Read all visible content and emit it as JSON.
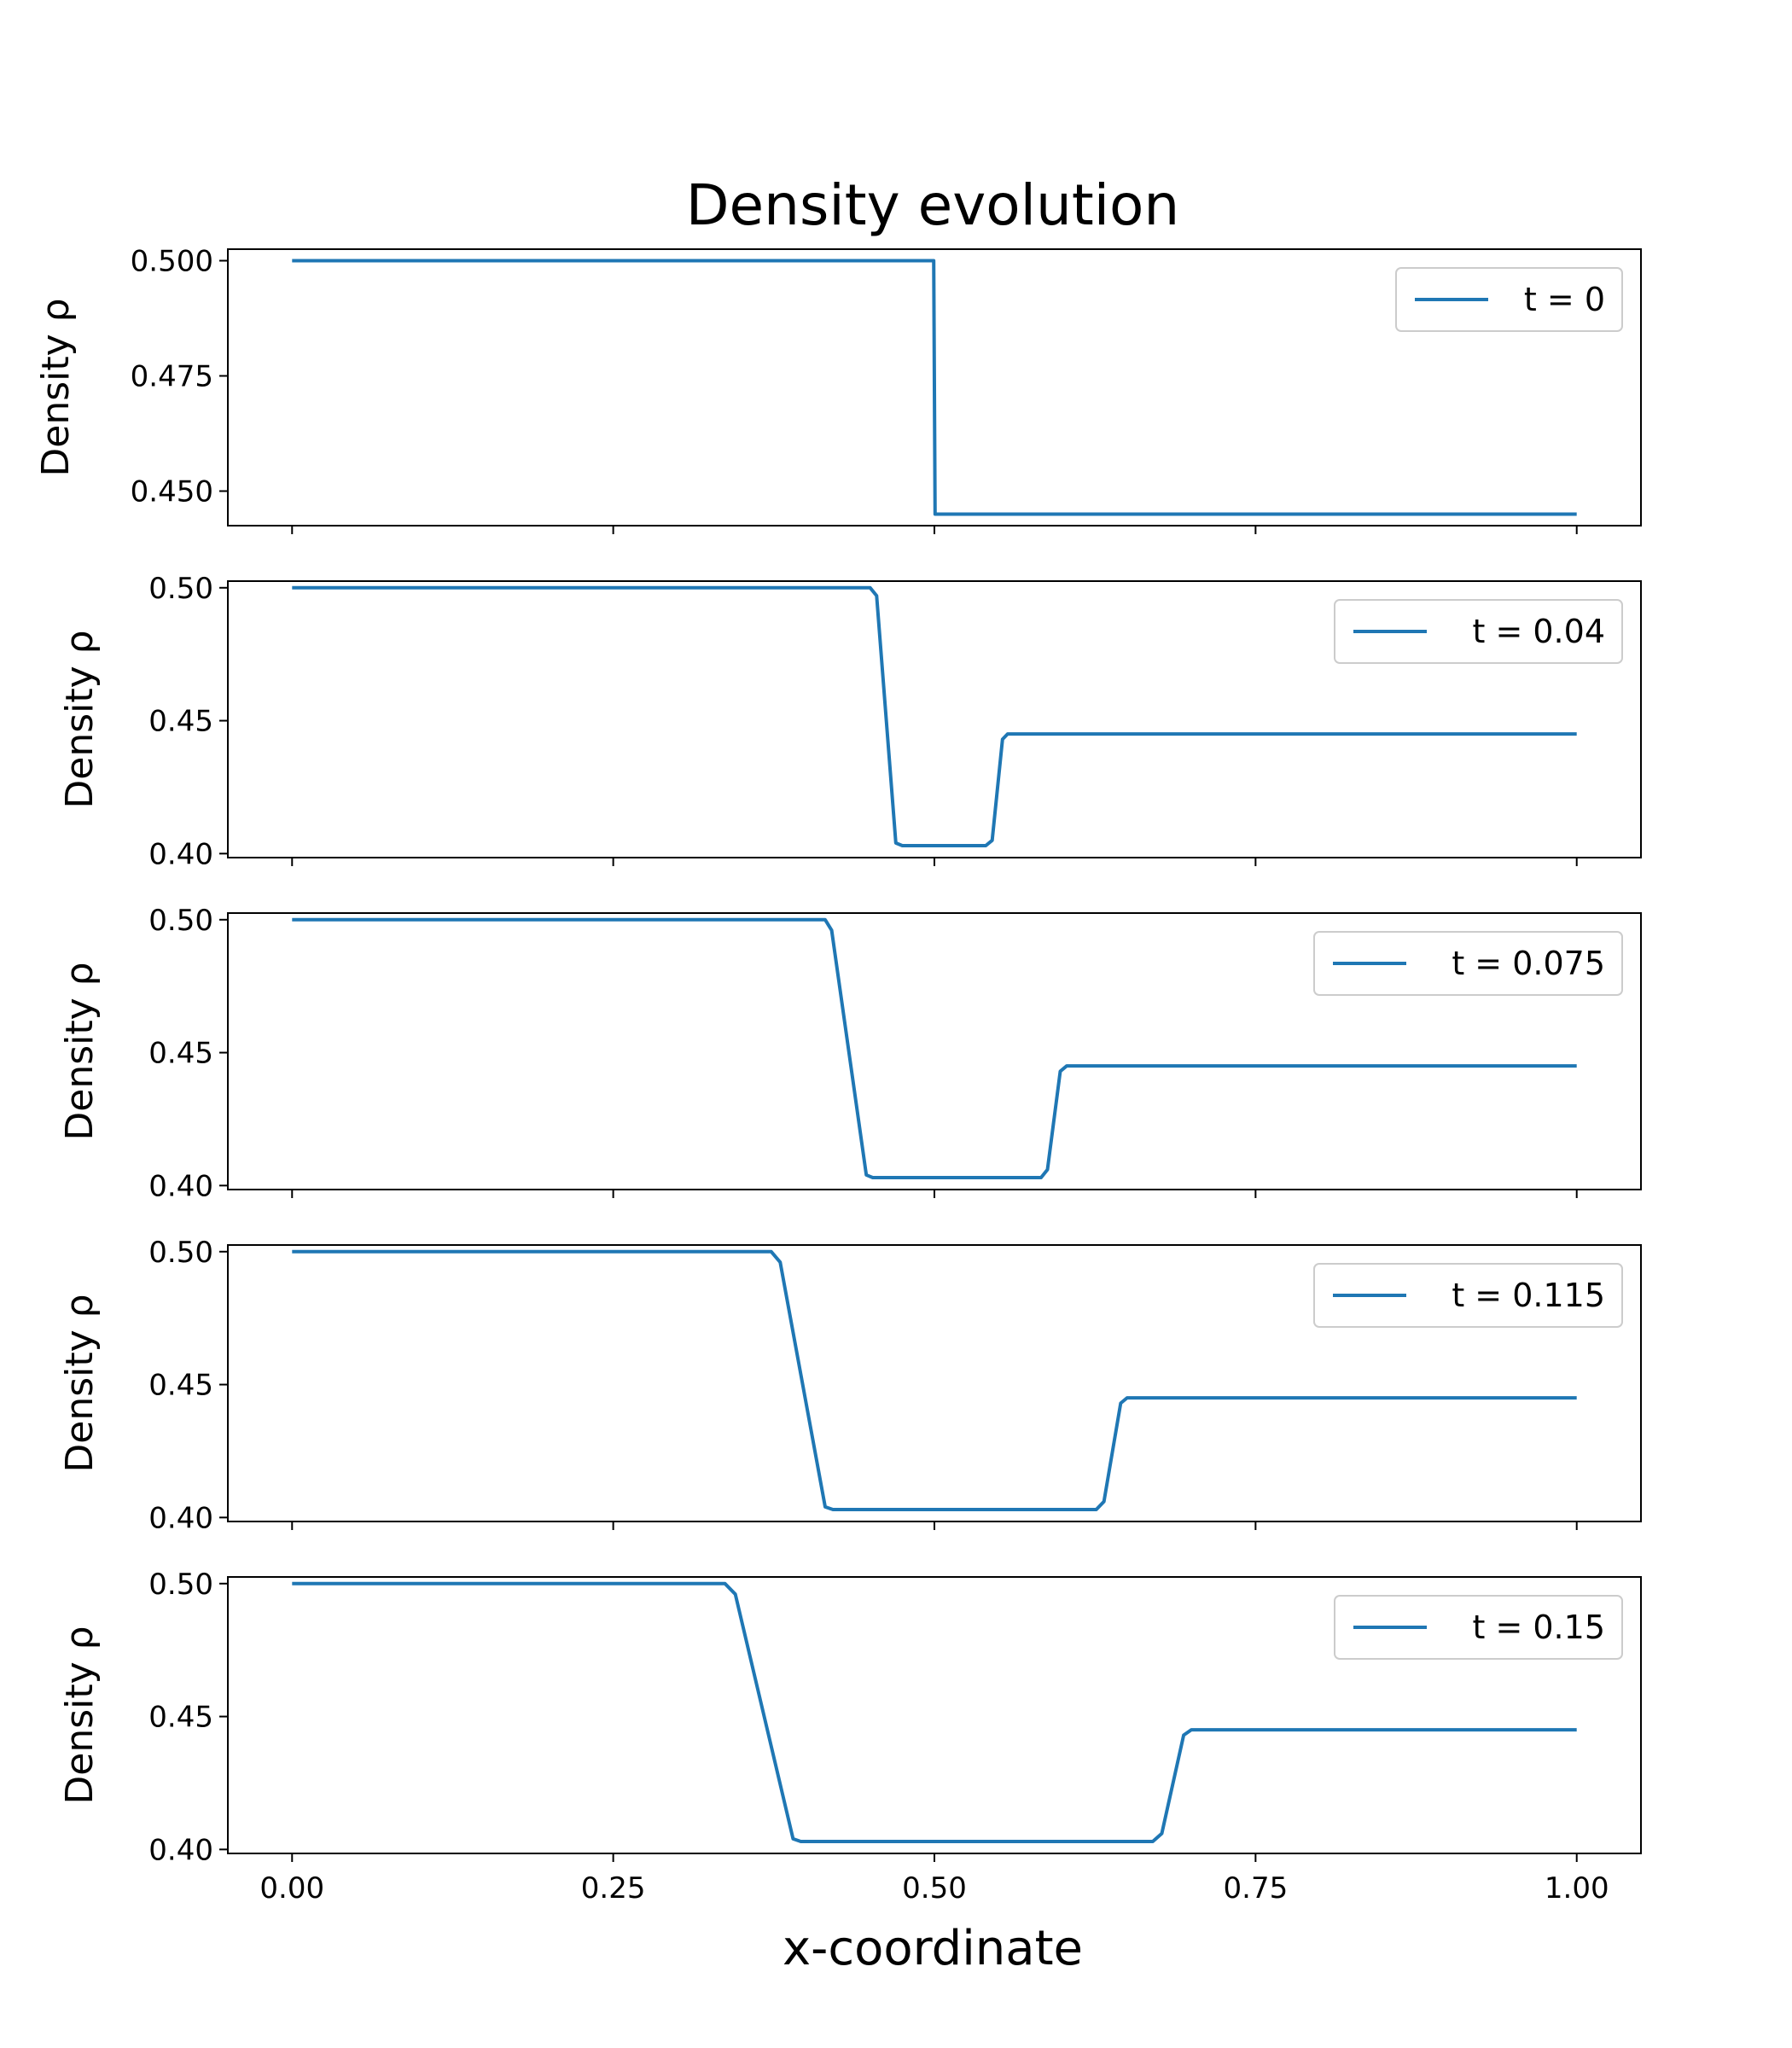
{
  "chart_data": {
    "type": "line",
    "title": "Density evolution",
    "xlabel": "x-coordinate",
    "ylabel": "Density ρ",
    "xlim": [
      -0.05,
      1.05
    ],
    "xticks": [
      "0.00",
      "0.25",
      "0.50",
      "0.75",
      "1.00"
    ],
    "line_color": "#1f77b4",
    "legend_position": "upper right",
    "panels": [
      {
        "legend": "t = 0",
        "ylim": [
          0.4425,
          0.5025
        ],
        "yticks": [
          "0.450",
          "0.475",
          "0.500"
        ],
        "points": [
          [
            0.0,
            0.5
          ],
          [
            0.4995,
            0.5
          ],
          [
            0.5005,
            0.445
          ],
          [
            1.0,
            0.445
          ]
        ]
      },
      {
        "legend": "t = 0.04",
        "ylim": [
          0.3985,
          0.5025
        ],
        "yticks": [
          "0.40",
          "0.45",
          "0.50"
        ],
        "points": [
          [
            0.0,
            0.5
          ],
          [
            0.45,
            0.5
          ],
          [
            0.455,
            0.497
          ],
          [
            0.47,
            0.404
          ],
          [
            0.475,
            0.403
          ],
          [
            0.54,
            0.403
          ],
          [
            0.545,
            0.405
          ],
          [
            0.553,
            0.443
          ],
          [
            0.557,
            0.445
          ],
          [
            1.0,
            0.445
          ]
        ]
      },
      {
        "legend": "t = 0.075",
        "ylim": [
          0.3985,
          0.5025
        ],
        "yticks": [
          "0.40",
          "0.45",
          "0.50"
        ],
        "points": [
          [
            0.0,
            0.5
          ],
          [
            0.415,
            0.5
          ],
          [
            0.42,
            0.496
          ],
          [
            0.447,
            0.404
          ],
          [
            0.452,
            0.403
          ],
          [
            0.583,
            0.403
          ],
          [
            0.588,
            0.406
          ],
          [
            0.598,
            0.443
          ],
          [
            0.603,
            0.445
          ],
          [
            1.0,
            0.445
          ]
        ]
      },
      {
        "legend": "t = 0.115",
        "ylim": [
          0.3985,
          0.5025
        ],
        "yticks": [
          "0.40",
          "0.45",
          "0.50"
        ],
        "points": [
          [
            0.0,
            0.5
          ],
          [
            0.373,
            0.5
          ],
          [
            0.38,
            0.496
          ],
          [
            0.415,
            0.404
          ],
          [
            0.421,
            0.403
          ],
          [
            0.626,
            0.403
          ],
          [
            0.632,
            0.406
          ],
          [
            0.645,
            0.443
          ],
          [
            0.65,
            0.445
          ],
          [
            1.0,
            0.445
          ]
        ]
      },
      {
        "legend": "t = 0.15",
        "ylim": [
          0.3985,
          0.5025
        ],
        "yticks": [
          "0.40",
          "0.45",
          "0.50"
        ],
        "points": [
          [
            0.0,
            0.5
          ],
          [
            0.337,
            0.5
          ],
          [
            0.345,
            0.496
          ],
          [
            0.39,
            0.404
          ],
          [
            0.396,
            0.403
          ],
          [
            0.67,
            0.403
          ],
          [
            0.677,
            0.406
          ],
          [
            0.694,
            0.443
          ],
          [
            0.7,
            0.445
          ],
          [
            1.0,
            0.445
          ]
        ]
      }
    ]
  }
}
